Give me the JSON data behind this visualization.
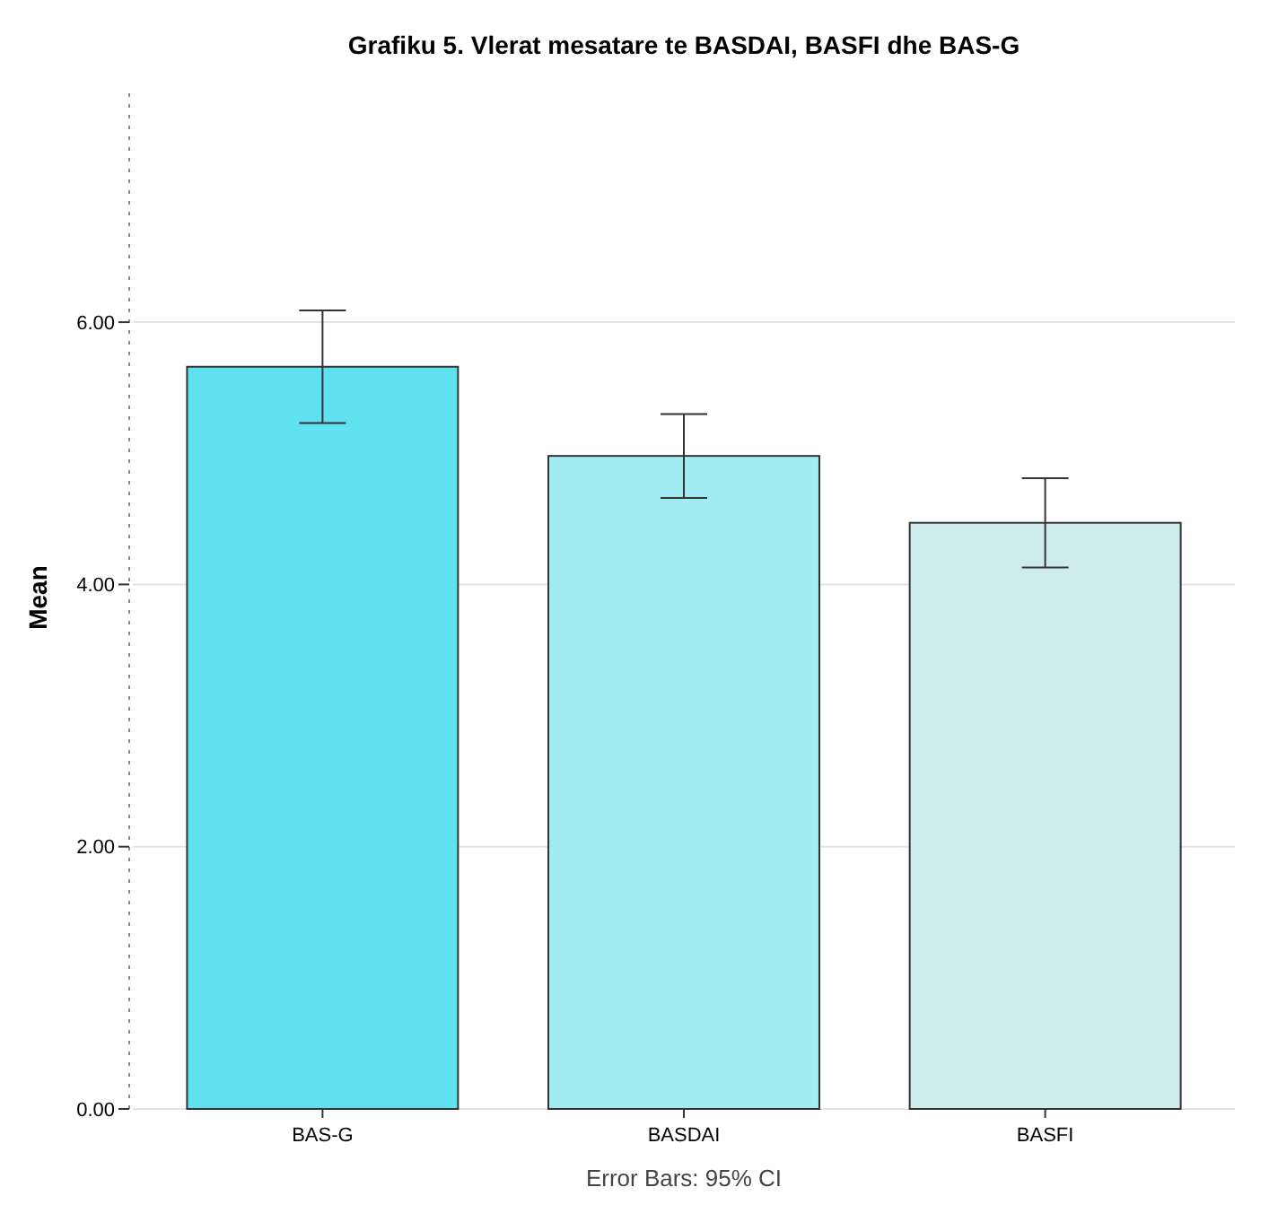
{
  "chart_data": {
    "type": "bar",
    "title": "Grafiku 5. Vlerat mesatare te BASDAI, BASFI dhe BAS-G",
    "ylabel": "Mean",
    "categories": [
      "BAS-G",
      "BASDAI",
      "BASFI"
    ],
    "values": [
      5.66,
      4.98,
      4.47
    ],
    "colors": [
      "#5fe1f0",
      "#a0ecf2",
      "#cfeced"
    ],
    "errors": [
      [
        5.23,
        6.09
      ],
      [
        4.66,
        5.3
      ],
      [
        4.13,
        4.81
      ]
    ],
    "ylim": [
      0,
      7.8
    ],
    "yticks": [
      {
        "value": 0,
        "label": "0.00"
      },
      {
        "value": 2,
        "label": "2.00"
      },
      {
        "value": 4,
        "label": "4.00"
      },
      {
        "value": 6,
        "label": "6.00"
      }
    ],
    "grid": "y",
    "annotations": [
      "Error Bars: 95% CI"
    ]
  }
}
